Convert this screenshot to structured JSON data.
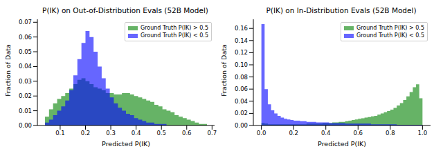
{
  "chart_data": [
    {
      "type": "histogram",
      "title": "P(IK) on Out-of-Distribution Evals (52B Model)",
      "x_label": "Predicted P(IK)",
      "y_label": "Fraction of Data",
      "legend": "upper right",
      "bins": [
        0.04,
        0.056,
        0.072,
        0.088,
        0.104,
        0.12,
        0.136,
        0.152,
        0.168,
        0.184,
        0.2,
        0.216,
        0.232,
        0.248,
        0.264,
        0.28,
        0.296,
        0.312,
        0.328,
        0.344,
        0.36,
        0.376,
        0.392,
        0.408,
        0.424,
        0.44,
        0.456,
        0.472,
        0.488,
        0.504,
        0.52,
        0.536,
        0.552,
        0.568,
        0.584,
        0.6,
        0.616,
        0.632,
        0.648,
        0.664,
        0.68
      ],
      "series": [
        {
          "name": "Ground Truth P(IK) > 0.5",
          "color": "#008000",
          "values": [
            0.006,
            0.011,
            0.015,
            0.018,
            0.02,
            0.022,
            0.025,
            0.028,
            0.031,
            0.032,
            0.03,
            0.028,
            0.026,
            0.025,
            0.024,
            0.022,
            0.022,
            0.021,
            0.021,
            0.022,
            0.022,
            0.021,
            0.02,
            0.019,
            0.018,
            0.017,
            0.016,
            0.014,
            0.013,
            0.011,
            0.01,
            0.009,
            0.007,
            0.006,
            0.005,
            0.004,
            0.003,
            0.002,
            0.001,
            0.001
          ]
        },
        {
          "name": "Ground Truth P(IK) < 0.5",
          "color": "#0000ff",
          "values": [
            0.002,
            0.004,
            0.007,
            0.01,
            0.013,
            0.017,
            0.024,
            0.034,
            0.045,
            0.056,
            0.064,
            0.06,
            0.05,
            0.04,
            0.032,
            0.025,
            0.019,
            0.015,
            0.012,
            0.01,
            0.008,
            0.007,
            0.005,
            0.004,
            0.003,
            0.002,
            0.002,
            0.001,
            0.001,
            0.001,
            0,
            0,
            0,
            0,
            0,
            0,
            0,
            0,
            0,
            0
          ]
        }
      ],
      "xlim": [
        0.01,
        0.71
      ],
      "xticks": [
        0.1,
        0.2,
        0.3,
        0.4,
        0.5,
        0.6,
        0.7
      ],
      "ylim": [
        0,
        0.072
      ],
      "yticks": [
        {
          "value": 0,
          "label": "0.00"
        },
        0.01,
        0.02,
        0.03,
        0.04,
        0.05,
        0.06,
        0.07
      ]
    },
    {
      "type": "histogram",
      "title": "P(IK) on In-Distribution Evals (52B Model)",
      "x_label": "Predicted P(IK)",
      "y_label": "Fraction of Data",
      "legend": "upper right",
      "bins": [
        0,
        0.02,
        0.04,
        0.06,
        0.08,
        0.1,
        0.12,
        0.14,
        0.16,
        0.18,
        0.2,
        0.22,
        0.24,
        0.26,
        0.28,
        0.3,
        0.32,
        0.34,
        0.36,
        0.38,
        0.4,
        0.42,
        0.44,
        0.46,
        0.48,
        0.5,
        0.52,
        0.54,
        0.56,
        0.58,
        0.6,
        0.62,
        0.64,
        0.66,
        0.68,
        0.7,
        0.72,
        0.74,
        0.76,
        0.78,
        0.8,
        0.82,
        0.84,
        0.86,
        0.88,
        0.9,
        0.92,
        0.94,
        0.96,
        0.98,
        1.0
      ],
      "series": [
        {
          "name": "Ground Truth P(IK) > 0.5",
          "color": "#008000",
          "values": [
            0.004,
            0.003,
            0.002,
            0.002,
            0.002,
            0.002,
            0.002,
            0.002,
            0.002,
            0.002,
            0.002,
            0.002,
            0.002,
            0.002,
            0.003,
            0.003,
            0.003,
            0.003,
            0.003,
            0.004,
            0.004,
            0.004,
            0.005,
            0.005,
            0.006,
            0.006,
            0.007,
            0.008,
            0.009,
            0.01,
            0.011,
            0.012,
            0.013,
            0.014,
            0.015,
            0.016,
            0.018,
            0.02,
            0.022,
            0.024,
            0.026,
            0.029,
            0.033,
            0.037,
            0.042,
            0.048,
            0.055,
            0.063,
            0.068,
            0.045
          ]
        },
        {
          "name": "Ground Truth P(IK) < 0.5",
          "color": "#0000ff",
          "values": [
            0.167,
            0.06,
            0.035,
            0.025,
            0.02,
            0.016,
            0.013,
            0.011,
            0.01,
            0.009,
            0.008,
            0.008,
            0.007,
            0.007,
            0.006,
            0.006,
            0.006,
            0.005,
            0.005,
            0.005,
            0.005,
            0.004,
            0.004,
            0.004,
            0.004,
            0.004,
            0.003,
            0.003,
            0.003,
            0.003,
            0.003,
            0.003,
            0.003,
            0.003,
            0.002,
            0.002,
            0.002,
            0.002,
            0.002,
            0.002,
            0.002,
            0.002,
            0.001,
            0.001,
            0.001,
            0.001,
            0.001,
            0.001,
            0.001,
            0.001
          ]
        }
      ],
      "xlim": [
        -0.05,
        1.05
      ],
      "xticks": [
        {
          "value": 0,
          "label": "0.0"
        },
        0.2,
        0.4,
        0.6,
        0.8,
        {
          "value": 1,
          "label": "1.0"
        }
      ],
      "ylim": [
        0,
        0.175
      ],
      "yticks": [
        {
          "value": 0,
          "label": "0.00"
        },
        0.02,
        0.04,
        0.06,
        0.08,
        {
          "value": 0.1,
          "label": "0.10"
        },
        0.12,
        0.14,
        0.16
      ]
    }
  ]
}
